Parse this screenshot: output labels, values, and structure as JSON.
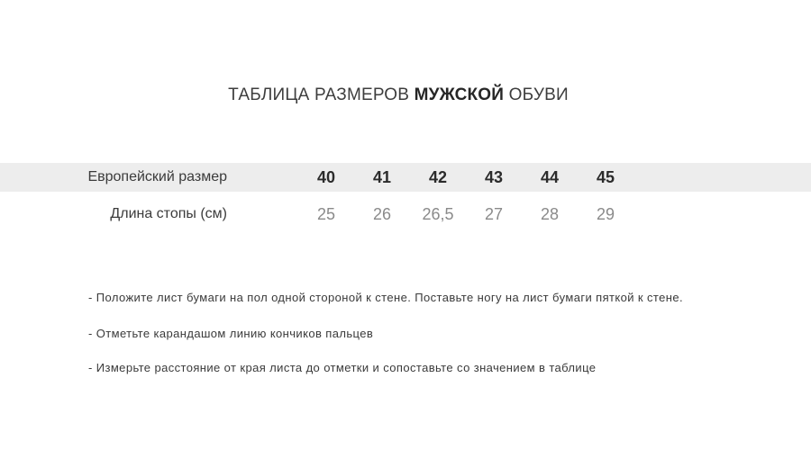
{
  "title": {
    "prefix": "ТАБЛИЦА РАЗМЕРОВ ",
    "highlight": "МУЖСКОЙ",
    "suffix": " ОБУВИ"
  },
  "size_table": {
    "header_row": {
      "label": "Европейский размер",
      "values": [
        "40",
        "41",
        "42",
        "43",
        "44",
        "45"
      ]
    },
    "body_row": {
      "label": "Длина стопы (см)",
      "values": [
        "25",
        "26",
        "26,5",
        "27",
        "28",
        "29"
      ]
    }
  },
  "instructions": {
    "items": [
      "- Положите лист бумаги на пол одной стороной к стене. Поставьте ногу на лист бумаги пяткой к стене.",
      "- Отметьте карандашом линию кончиков пальцев",
      "- Измерьте расстояние от края листа до отметки и сопоставьте со значением в таблице"
    ]
  },
  "colors": {
    "page_background": "#ffffff",
    "header_band": "#ededed",
    "title_text": "#3d3d3d",
    "title_highlight_text": "#262626",
    "row_label_text": "#3b3b3b",
    "size_value_text": "#2b2b2b",
    "length_value_text": "#8a8a8a",
    "instruction_text": "#3a3a3a"
  }
}
